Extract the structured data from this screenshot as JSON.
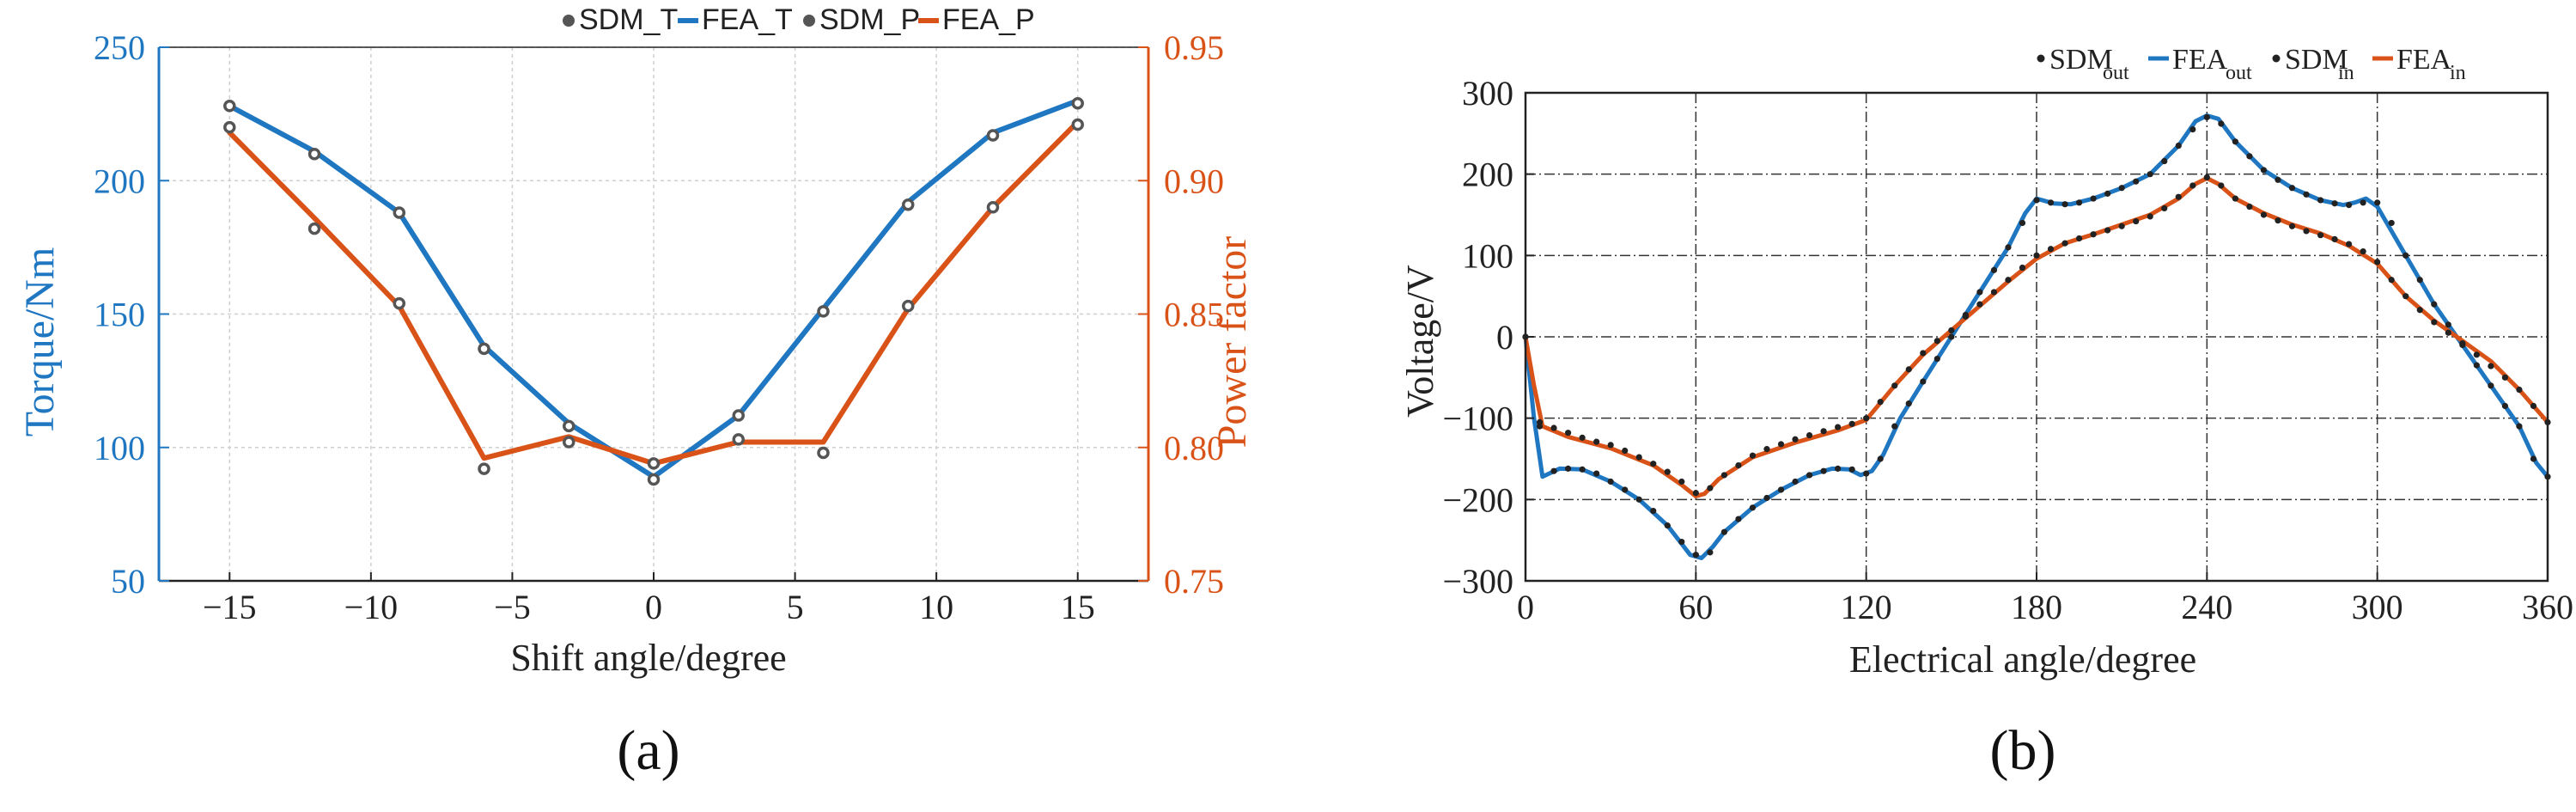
{
  "colors": {
    "blue": "#1f77c2",
    "orange": "#d95319",
    "marker_gray": "#555555",
    "axis_black": "#222222",
    "grid_light": "#cfcfcf",
    "grid_dark": "#333333"
  },
  "chart_data": [
    {
      "id": "a",
      "panel_label": "(a)",
      "type": "line",
      "title": "",
      "xlabel": "Shift angle/degree",
      "ylabel_left": "Torque/Nm",
      "ylabel_right": "Power factor",
      "xlim": [
        -17.5,
        17.5
      ],
      "ylim_left": [
        50,
        250
      ],
      "ylim_right": [
        0.75,
        0.95
      ],
      "xticks": [
        -15,
        -10,
        -5,
        0,
        5,
        10,
        15
      ],
      "xtick_labels": [
        "−15",
        "−10",
        "−5",
        "0",
        "5",
        "10",
        "15"
      ],
      "yticks_left": [
        50,
        100,
        150,
        200,
        250
      ],
      "ytick_labels_left": [
        "50",
        "100",
        "150",
        "200",
        "250"
      ],
      "yticks_right": [
        0.75,
        0.8,
        0.85,
        0.9,
        0.95
      ],
      "ytick_labels_right": [
        "0.75",
        "0.80",
        "0.85",
        "0.90",
        "0.95"
      ],
      "grid": true,
      "legend_position": "top-right",
      "legend": [
        {
          "label": "SDM_T",
          "kind": "marker",
          "color_key": "marker_gray"
        },
        {
          "label": "FEA_T",
          "kind": "line",
          "color_key": "blue"
        },
        {
          "label": "SDM_P",
          "kind": "marker",
          "color_key": "marker_gray"
        },
        {
          "label": "FEA_P",
          "kind": "line",
          "color_key": "orange"
        }
      ],
      "series": [
        {
          "name": "SDM_T",
          "axis": "left",
          "style": "marker",
          "color_key": "marker_gray",
          "x": [
            -15,
            -12,
            -9,
            -6,
            -3,
            0,
            3,
            6,
            9,
            12,
            15
          ],
          "y": [
            228,
            210,
            188,
            137,
            108,
            88,
            112,
            151,
            191,
            217,
            229
          ]
        },
        {
          "name": "FEA_T",
          "axis": "left",
          "style": "line",
          "color_key": "blue",
          "x": [
            -15,
            -12,
            -9,
            -6,
            -3,
            0,
            3,
            6,
            9,
            12,
            15
          ],
          "y": [
            228,
            211,
            188,
            138,
            109,
            89,
            112,
            152,
            192,
            218,
            230
          ]
        },
        {
          "name": "SDM_P",
          "axis": "right",
          "style": "marker",
          "color_key": "marker_gray",
          "x": [
            -15,
            -12,
            -9,
            -6,
            -3,
            0,
            3,
            6,
            9,
            12,
            15
          ],
          "y": [
            0.92,
            0.882,
            0.854,
            0.792,
            0.802,
            0.794,
            0.803,
            0.798,
            0.853,
            0.89,
            0.921
          ]
        },
        {
          "name": "FEA_P",
          "axis": "right",
          "style": "line",
          "color_key": "orange",
          "x": [
            -15,
            -12,
            -9,
            -6,
            -3,
            0,
            3,
            6,
            9,
            12,
            15
          ],
          "y": [
            0.918,
            0.886,
            0.853,
            0.796,
            0.804,
            0.794,
            0.802,
            0.802,
            0.852,
            0.89,
            0.922
          ]
        }
      ]
    },
    {
      "id": "b",
      "panel_label": "(b)",
      "type": "line",
      "title": "",
      "xlabel": "Electrical angle/degree",
      "ylabel": "Voltage/V",
      "xlim": [
        0,
        360
      ],
      "ylim": [
        -300,
        300
      ],
      "xticks": [
        0,
        60,
        120,
        180,
        240,
        300,
        360
      ],
      "xtick_labels": [
        "0",
        "60",
        "120",
        "180",
        "240",
        "300",
        "360"
      ],
      "yticks": [
        -300,
        -200,
        -100,
        0,
        100,
        200,
        300
      ],
      "ytick_labels": [
        "−300",
        "−200",
        "−100",
        "0",
        "100",
        "200",
        "300"
      ],
      "grid": true,
      "legend_position": "top-right",
      "legend": [
        {
          "label": "SDM",
          "sub": "out",
          "kind": "dot",
          "color_key": "axis_black"
        },
        {
          "label": "FEA",
          "sub": "out",
          "kind": "line",
          "color_key": "blue"
        },
        {
          "label": "SDM",
          "sub": "in",
          "kind": "dot",
          "color_key": "axis_black"
        },
        {
          "label": "FEA",
          "sub": "in",
          "kind": "line",
          "color_key": "orange"
        }
      ],
      "series": [
        {
          "name": "FEA_out",
          "style": "line",
          "color_key": "blue",
          "x": [
            0,
            3,
            6,
            12,
            20,
            30,
            40,
            50,
            58,
            62,
            66,
            70,
            80,
            90,
            100,
            108,
            114,
            118,
            122,
            126,
            132,
            140,
            150,
            160,
            170,
            176,
            180,
            186,
            192,
            200,
            210,
            220,
            230,
            236,
            240,
            244,
            250,
            260,
            270,
            280,
            288,
            292,
            296,
            300,
            310,
            320,
            330,
            340,
            350,
            356,
            360
          ],
          "y": [
            0,
            -100,
            -172,
            -162,
            -163,
            -178,
            -200,
            -232,
            -268,
            -272,
            -258,
            -240,
            -210,
            -188,
            -170,
            -162,
            -163,
            -170,
            -165,
            -145,
            -100,
            -55,
            0,
            55,
            110,
            152,
            170,
            164,
            163,
            170,
            183,
            200,
            235,
            265,
            272,
            268,
            240,
            205,
            183,
            168,
            162,
            165,
            170,
            160,
            100,
            40,
            -10,
            -60,
            -110,
            -155,
            -172
          ]
        },
        {
          "name": "FEA_in",
          "style": "line",
          "color_key": "orange",
          "x": [
            0,
            3,
            6,
            15,
            30,
            45,
            55,
            60,
            63,
            68,
            80,
            95,
            110,
            120,
            130,
            140,
            150,
            160,
            170,
            180,
            190,
            200,
            210,
            220,
            230,
            236,
            240,
            244,
            250,
            260,
            270,
            280,
            290,
            300,
            310,
            320,
            330,
            340,
            350,
            360
          ],
          "y": [
            0,
            -60,
            -110,
            -123,
            -137,
            -158,
            -182,
            -196,
            -193,
            -175,
            -148,
            -130,
            -115,
            -102,
            -60,
            -22,
            8,
            38,
            68,
            96,
            115,
            126,
            138,
            150,
            170,
            188,
            195,
            188,
            170,
            152,
            138,
            127,
            112,
            90,
            50,
            20,
            -5,
            -30,
            -65,
            -105
          ]
        },
        {
          "name": "SDM_out",
          "style": "dots",
          "color_key": "axis_black",
          "x": [
            0,
            5,
            10,
            15,
            20,
            25,
            30,
            35,
            40,
            45,
            50,
            55,
            60,
            65,
            70,
            75,
            80,
            85,
            90,
            95,
            100,
            105,
            110,
            115,
            120,
            125,
            130,
            135,
            140,
            145,
            150,
            155,
            160,
            165,
            170,
            175,
            180,
            185,
            190,
            195,
            200,
            205,
            210,
            215,
            220,
            225,
            230,
            235,
            240,
            245,
            250,
            255,
            260,
            265,
            270,
            275,
            280,
            285,
            290,
            295,
            300,
            305,
            310,
            315,
            320,
            325,
            330,
            335,
            340,
            345,
            350,
            355,
            360
          ],
          "y": [
            0,
            -110,
            -165,
            -162,
            -163,
            -168,
            -178,
            -188,
            -200,
            -214,
            -232,
            -252,
            -268,
            -265,
            -240,
            -224,
            -210,
            -198,
            -188,
            -178,
            -170,
            -165,
            -162,
            -163,
            -168,
            -150,
            -110,
            -82,
            -55,
            -27,
            0,
            27,
            55,
            82,
            110,
            140,
            168,
            165,
            163,
            165,
            170,
            176,
            183,
            191,
            200,
            216,
            235,
            255,
            270,
            262,
            240,
            222,
            205,
            193,
            183,
            175,
            168,
            164,
            162,
            165,
            165,
            140,
            100,
            70,
            40,
            15,
            -10,
            -35,
            -60,
            -85,
            -110,
            -150,
            -172
          ]
        },
        {
          "name": "SDM_in",
          "style": "dots",
          "color_key": "axis_black",
          "x": [
            0,
            5,
            10,
            15,
            20,
            25,
            30,
            35,
            40,
            45,
            50,
            55,
            60,
            65,
            70,
            75,
            80,
            85,
            90,
            95,
            100,
            105,
            110,
            115,
            120,
            125,
            130,
            135,
            140,
            145,
            150,
            155,
            160,
            165,
            170,
            175,
            180,
            185,
            190,
            195,
            200,
            205,
            210,
            215,
            220,
            225,
            230,
            235,
            240,
            245,
            250,
            255,
            260,
            265,
            270,
            275,
            280,
            285,
            290,
            295,
            300,
            305,
            310,
            315,
            320,
            325,
            330,
            335,
            340,
            345,
            350,
            355,
            360
          ],
          "y": [
            0,
            -105,
            -112,
            -118,
            -124,
            -129,
            -133,
            -140,
            -148,
            -156,
            -166,
            -178,
            -192,
            -186,
            -170,
            -158,
            -146,
            -138,
            -132,
            -126,
            -121,
            -116,
            -111,
            -107,
            -100,
            -80,
            -60,
            -40,
            -20,
            -5,
            8,
            25,
            40,
            55,
            70,
            85,
            100,
            108,
            115,
            121,
            126,
            131,
            136,
            142,
            148,
            158,
            172,
            186,
            196,
            186,
            170,
            160,
            150,
            143,
            136,
            130,
            125,
            120,
            114,
            105,
            92,
            70,
            50,
            33,
            18,
            5,
            -8,
            -22,
            -36,
            -50,
            -65,
            -85,
            -105
          ]
        }
      ]
    }
  ]
}
